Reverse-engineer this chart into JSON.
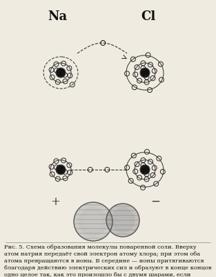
{
  "bg_color": "#f0ebe0",
  "na_label": "Na",
  "cl_label": "Cl",
  "caption": "Рис. 5. Схема образования молекулы поваренной соли. Вверху\nатом натрия передаёт свой электрон атому хлора; при этом оба\nатома превращаются в ионы. В середине — ионы притягиваются\nблагодаря действию электрических сил и образуют в конце концов\nодно целое так, как это произошло бы с двумя шарами, если\nбы они стягивались пружиной (см. внизу).",
  "caption_fontsize": 6.0,
  "electron_color": "#222222",
  "nucleus_color": "#111111",
  "orbit_color": "#444444",
  "dashed_color": "#333333",
  "plus_label": "+",
  "minus_label": "−",
  "fig_width": 3.13,
  "fig_height": 4.0,
  "dpi": 100
}
